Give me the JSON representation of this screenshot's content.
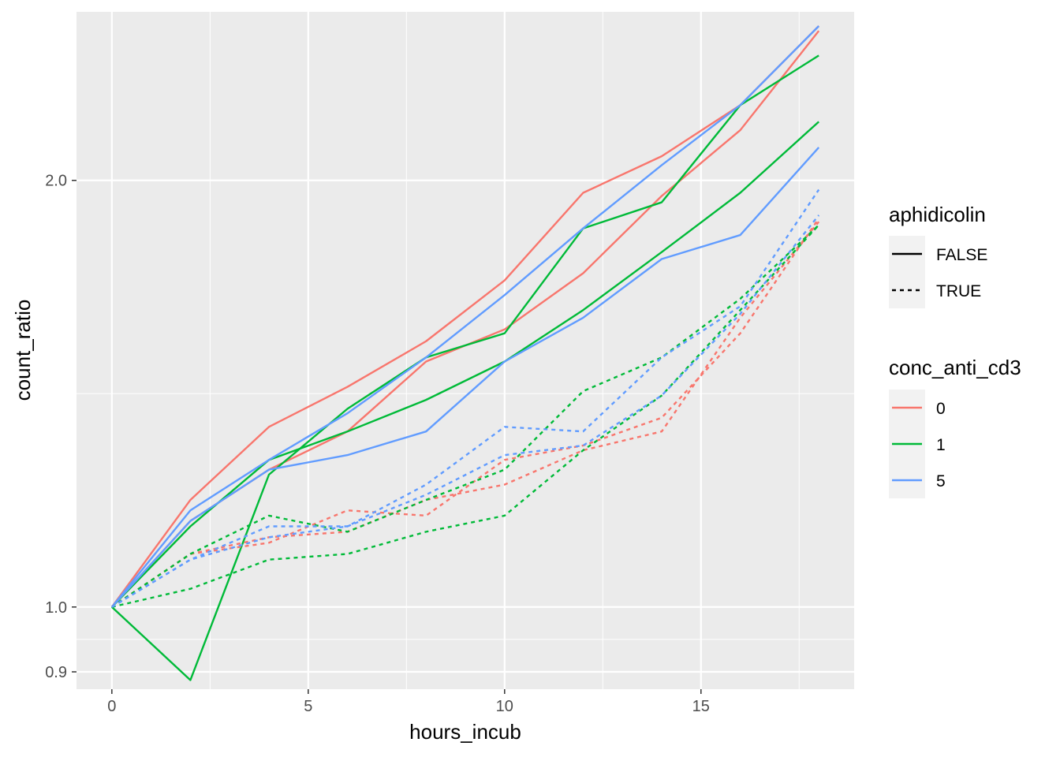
{
  "chart_data": {
    "type": "line",
    "xlabel": "hours_incub",
    "ylabel": "count_ratio",
    "x_ticks": [
      0,
      5,
      10,
      15
    ],
    "y_ticks": [
      0.9,
      1.0,
      2.0
    ],
    "y_scale": "log",
    "xlim": [
      -0.9,
      18.9
    ],
    "ylim": [
      0.875,
      2.63
    ],
    "grid": true,
    "legend_position": "right",
    "legends": {
      "linetype": {
        "title": "aphidicolin",
        "entries": [
          {
            "label": "FALSE",
            "dash": "solid"
          },
          {
            "label": "TRUE",
            "dash": "dotted"
          }
        ]
      },
      "color": {
        "title": "conc_anti_cd3",
        "entries": [
          {
            "label": "0",
            "color": "#F8766D"
          },
          {
            "label": "1",
            "color": "#00BA38"
          },
          {
            "label": "5",
            "color": "#619CFF"
          }
        ]
      }
    },
    "x": [
      0,
      2,
      4,
      6,
      8,
      10,
      12,
      14,
      16,
      18
    ],
    "series": [
      {
        "conc_anti_cd3": "0",
        "aphidicolin": "FALSE",
        "color": "#F8766D",
        "dash": "solid",
        "values": [
          1.0,
          1.19,
          1.34,
          1.43,
          1.54,
          1.7,
          1.96,
          2.08,
          2.26,
          2.57
        ]
      },
      {
        "conc_anti_cd3": "0",
        "aphidicolin": "FALSE",
        "color": "#F8766D",
        "dash": "solid",
        "values": [
          1.0,
          1.15,
          1.25,
          1.33,
          1.49,
          1.57,
          1.72,
          1.95,
          2.17,
          2.55
        ]
      },
      {
        "conc_anti_cd3": "1",
        "aphidicolin": "FALSE",
        "color": "#00BA38",
        "dash": "solid",
        "values": [
          1.0,
          0.888,
          1.24,
          1.38,
          1.5,
          1.56,
          1.85,
          1.93,
          2.26,
          2.45
        ]
      },
      {
        "conc_anti_cd3": "1",
        "aphidicolin": "FALSE",
        "color": "#00BA38",
        "dash": "solid",
        "values": [
          1.0,
          1.14,
          1.27,
          1.33,
          1.4,
          1.49,
          1.62,
          1.78,
          1.96,
          2.2
        ]
      },
      {
        "conc_anti_cd3": "5",
        "aphidicolin": "FALSE",
        "color": "#619CFF",
        "dash": "solid",
        "values": [
          1.0,
          1.17,
          1.27,
          1.37,
          1.5,
          1.66,
          1.85,
          2.05,
          2.26,
          2.57
        ]
      },
      {
        "conc_anti_cd3": "5",
        "aphidicolin": "FALSE",
        "color": "#619CFF",
        "dash": "solid",
        "values": [
          1.0,
          1.15,
          1.25,
          1.28,
          1.33,
          1.49,
          1.6,
          1.76,
          1.83,
          2.11
        ]
      },
      {
        "conc_anti_cd3": "0",
        "aphidicolin": "TRUE",
        "color": "#F8766D",
        "dash": "dotted",
        "values": [
          1.0,
          1.09,
          1.11,
          1.17,
          1.16,
          1.27,
          1.3,
          1.36,
          1.56,
          1.88
        ]
      },
      {
        "conc_anti_cd3": "0",
        "aphidicolin": "TRUE",
        "color": "#F8766D",
        "dash": "dotted",
        "values": [
          1.0,
          1.09,
          1.12,
          1.13,
          1.19,
          1.22,
          1.29,
          1.33,
          1.6,
          1.87
        ]
      },
      {
        "conc_anti_cd3": "1",
        "aphidicolin": "TRUE",
        "color": "#00BA38",
        "dash": "dotted",
        "values": [
          1.0,
          1.09,
          1.16,
          1.13,
          1.19,
          1.25,
          1.42,
          1.5,
          1.65,
          1.86
        ]
      },
      {
        "conc_anti_cd3": "1",
        "aphidicolin": "TRUE",
        "color": "#00BA38",
        "dash": "dotted",
        "values": [
          1.0,
          1.03,
          1.08,
          1.09,
          1.13,
          1.16,
          1.29,
          1.41,
          1.62,
          1.86
        ]
      },
      {
        "conc_anti_cd3": "5",
        "aphidicolin": "TRUE",
        "color": "#619CFF",
        "dash": "dotted",
        "values": [
          1.0,
          1.08,
          1.14,
          1.14,
          1.22,
          1.34,
          1.33,
          1.5,
          1.63,
          1.97
        ]
      },
      {
        "conc_anti_cd3": "5",
        "aphidicolin": "TRUE",
        "color": "#619CFF",
        "dash": "dotted",
        "values": [
          1.0,
          1.08,
          1.12,
          1.14,
          1.2,
          1.28,
          1.3,
          1.41,
          1.61,
          1.89
        ]
      }
    ]
  }
}
